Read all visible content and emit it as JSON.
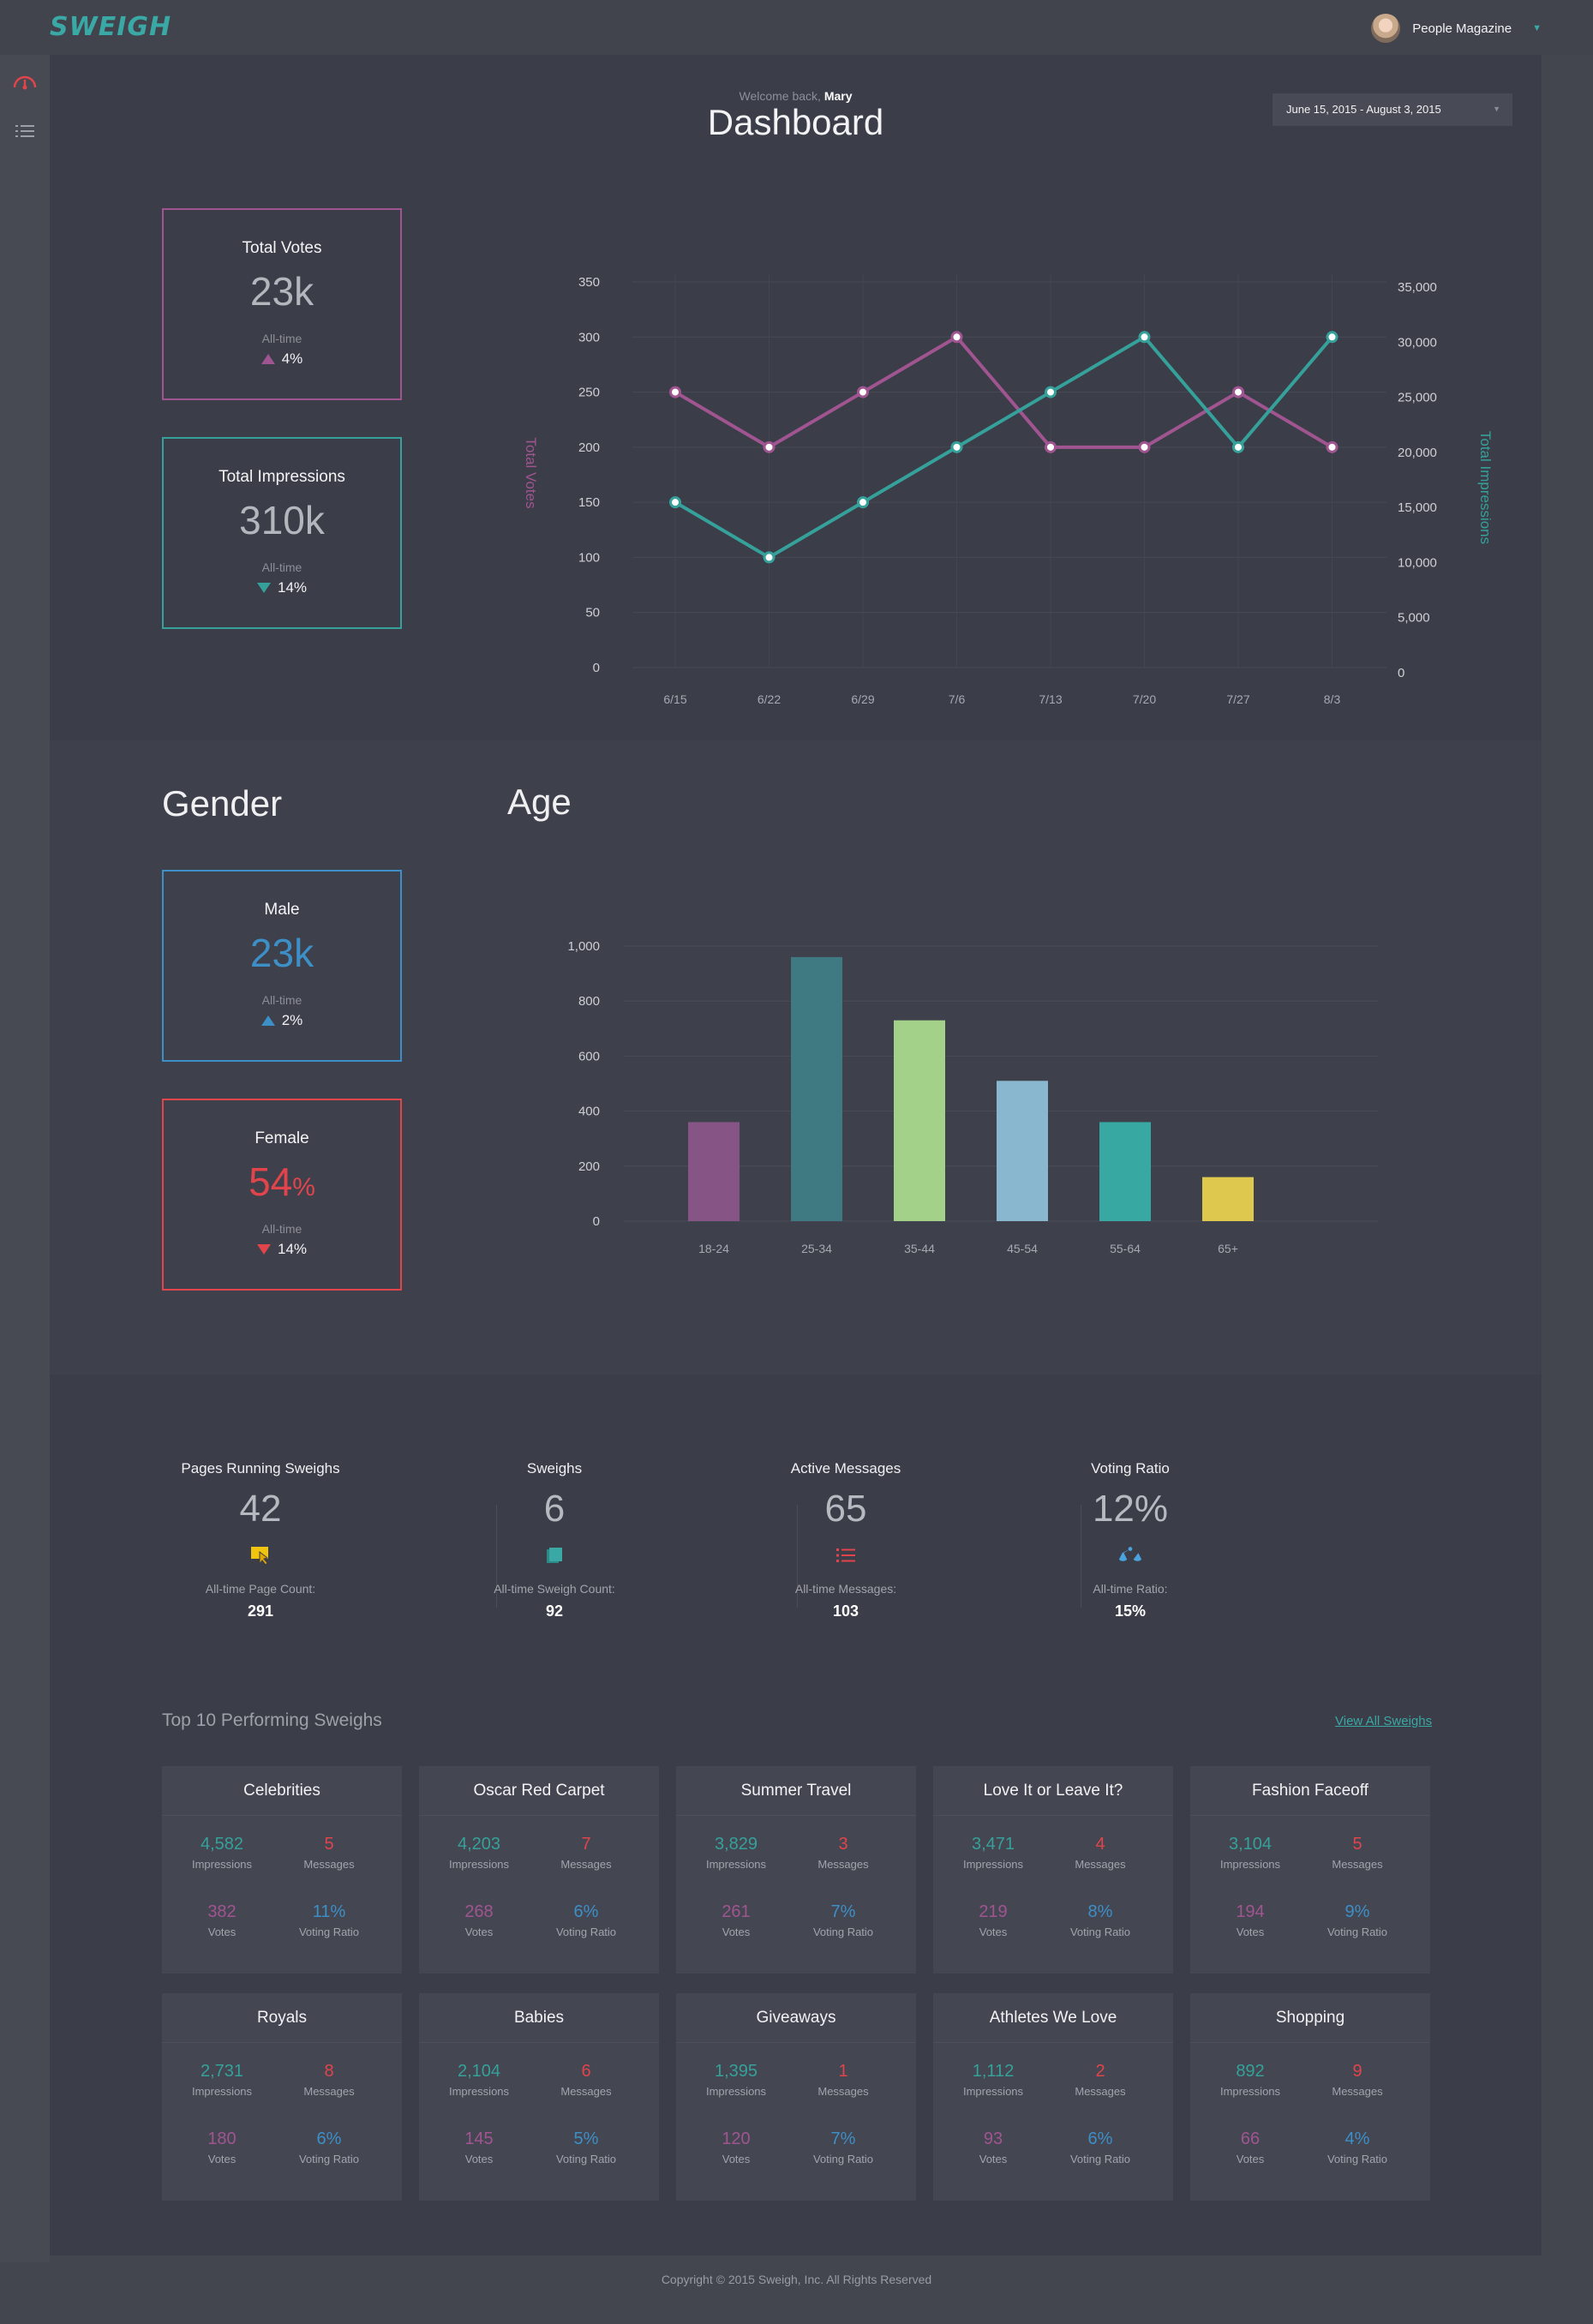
{
  "app": {
    "logo": "SWEIGH"
  },
  "user": {
    "name": "People Magazine"
  },
  "sidebar": {
    "items": [
      {
        "icon": "gauge-icon"
      },
      {
        "icon": "list-icon"
      }
    ]
  },
  "header": {
    "welcome_prefix": "Welcome back,",
    "welcome_name": "Mary",
    "title": "Dashboard",
    "date_range": "June 15, 2015 - August 3, 2015"
  },
  "colors": {
    "votes": "#a05591",
    "impressions": "#35a19a",
    "male": "#3d8fc7",
    "female": "#e2444c",
    "accent": "#3aa8a4"
  },
  "totals": {
    "votes": {
      "label": "Total Votes",
      "value": "23k",
      "alltime": "All-time",
      "delta": "4%",
      "direction": "up"
    },
    "impressions": {
      "label": "Total Impressions",
      "value": "310k",
      "alltime": "All-time",
      "delta": "14%",
      "direction": "down"
    }
  },
  "gender": {
    "title": "Gender",
    "male": {
      "label": "Male",
      "value": "23k",
      "alltime": "All-time",
      "delta": "2%",
      "direction": "up"
    },
    "female": {
      "label": "Female",
      "value": "54",
      "unit": "%",
      "alltime": "All-time",
      "delta": "14%",
      "direction": "down"
    }
  },
  "age": {
    "title": "Age"
  },
  "chart_data": [
    {
      "type": "line",
      "x": [
        "6/15",
        "6/22",
        "6/29",
        "7/6",
        "7/13",
        "7/20",
        "7/27",
        "8/3"
      ],
      "series": [
        {
          "name": "Total Votes",
          "axis": "left",
          "values": [
            250,
            200,
            250,
            300,
            200,
            200,
            250,
            200
          ],
          "color": "#a05591"
        },
        {
          "name": "Total Impressions",
          "axis": "right",
          "values": [
            15000,
            10000,
            15000,
            20000,
            25000,
            30000,
            20000,
            30000
          ],
          "color": "#35a19a"
        }
      ],
      "ylabel": "Total Votes",
      "y2label": "Total Impressions",
      "ylim": [
        0,
        350
      ],
      "y2lim": [
        0,
        35000
      ],
      "yticks": [
        "0",
        "50",
        "100",
        "150",
        "200",
        "250",
        "300",
        "350"
      ],
      "y2ticks": [
        "0",
        "5,000",
        "10,000",
        "15,000",
        "20,000",
        "25,000",
        "30,000",
        "35,000"
      ],
      "grid": true
    },
    {
      "type": "bar",
      "title": "Age",
      "categories": [
        "18-24",
        "25-34",
        "35-44",
        "45-54",
        "55-64",
        "65+"
      ],
      "values": [
        360,
        960,
        730,
        510,
        360,
        160
      ],
      "colors": [
        "#875585",
        "#3f7a82",
        "#a3d189",
        "#89b7cf",
        "#37a8a2",
        "#dfc84e"
      ],
      "ylim": [
        0,
        1000
      ],
      "yticks": [
        "0",
        "200",
        "400",
        "600",
        "800",
        "1,000"
      ],
      "grid": true
    }
  ],
  "summary": [
    {
      "label": "Pages Running Sweighs",
      "value": "42",
      "icon": "pages-cursor-icon",
      "icon_color": "#f1c40f",
      "sub_label": "All-time Page Count:",
      "sub_value": "291"
    },
    {
      "label": "Sweighs",
      "value": "6",
      "icon": "cards-icon",
      "icon_color": "#3aa8a4",
      "sub_label": "All-time Sweigh Count:",
      "sub_value": "92"
    },
    {
      "label": "Active Messages",
      "value": "65",
      "icon": "list-icon",
      "icon_color": "#e2444c",
      "sub_label": "All-time Messages:",
      "sub_value": "103"
    },
    {
      "label": "Voting Ratio",
      "value": "12%",
      "icon": "scale-icon",
      "icon_color": "#4aa3df",
      "sub_label": "All-time Ratio:",
      "sub_value": "15%"
    }
  ],
  "top10": {
    "title": "Top 10 Performing Sweighs",
    "view_all": "View All Sweighs",
    "labels": {
      "impressions": "Impressions",
      "messages": "Messages",
      "votes": "Votes",
      "ratio": "Voting Ratio"
    },
    "cards": [
      {
        "title": "Celebrities",
        "impressions": "4,582",
        "messages": "5",
        "votes": "382",
        "ratio": "11%"
      },
      {
        "title": "Oscar Red Carpet",
        "impressions": "4,203",
        "messages": "7",
        "votes": "268",
        "ratio": "6%"
      },
      {
        "title": "Summer Travel",
        "impressions": "3,829",
        "messages": "3",
        "votes": "261",
        "ratio": "7%"
      },
      {
        "title": "Love It or Leave It?",
        "impressions": "3,471",
        "messages": "4",
        "votes": "219",
        "ratio": "8%"
      },
      {
        "title": "Fashion Faceoff",
        "impressions": "3,104",
        "messages": "5",
        "votes": "194",
        "ratio": "9%"
      },
      {
        "title": "Royals",
        "impressions": "2,731",
        "messages": "8",
        "votes": "180",
        "ratio": "6%"
      },
      {
        "title": "Babies",
        "impressions": "2,104",
        "messages": "6",
        "votes": "145",
        "ratio": "5%"
      },
      {
        "title": "Giveaways",
        "impressions": "1,395",
        "messages": "1",
        "votes": "120",
        "ratio": "7%"
      },
      {
        "title": "Athletes We Love",
        "impressions": "1,112",
        "messages": "2",
        "votes": "93",
        "ratio": "6%"
      },
      {
        "title": "Shopping",
        "impressions": "892",
        "messages": "9",
        "votes": "66",
        "ratio": "4%"
      }
    ]
  },
  "footer": {
    "copyright": "Copyright © 2015 Sweigh, Inc. All Rights Reserved"
  }
}
